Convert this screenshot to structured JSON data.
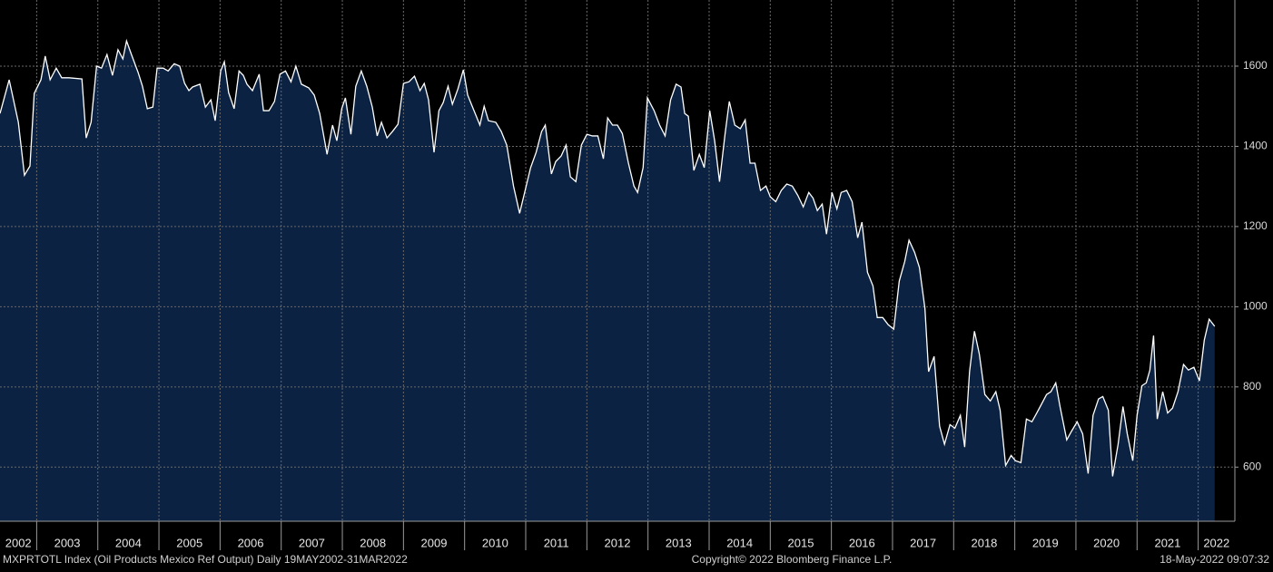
{
  "chart_data": {
    "type": "area",
    "source": "MXPRTOTL Index (Oil Products Mexico Ref Output)  Daily 19MAY2002-31MAR2022",
    "copyright": "Copyright© 2022 Bloomberg Finance L.P.",
    "timestamp": "18-May-2022 09:07:32",
    "xlim": [
      2002.4,
      2022.6
    ],
    "xticks": [
      2002,
      2003,
      2004,
      2005,
      2006,
      2007,
      2008,
      2009,
      2010,
      2011,
      2012,
      2013,
      2014,
      2015,
      2016,
      2017,
      2018,
      2019,
      2020,
      2021,
      2022
    ],
    "ylim": [
      465,
      1765
    ],
    "yticks": [
      600,
      800,
      1000,
      1200,
      1400,
      1600
    ],
    "grid": true,
    "x": [
      2002.4,
      2002.55,
      2002.7,
      2002.8,
      2002.89,
      2002.96,
      2003.07,
      2003.14,
      2003.22,
      2003.32,
      2003.41,
      2003.53,
      2003.74,
      2003.81,
      2003.89,
      2003.98,
      2004.06,
      2004.15,
      2004.24,
      2004.33,
      2004.41,
      2004.47,
      2004.55,
      2004.66,
      2004.73,
      2004.81,
      2004.9,
      2004.97,
      2005.07,
      2005.15,
      2005.25,
      2005.34,
      2005.42,
      2005.49,
      2005.55,
      2005.67,
      2005.76,
      2005.85,
      2005.92,
      2006.01,
      2006.07,
      2006.14,
      2006.23,
      2006.31,
      2006.38,
      2006.44,
      2006.53,
      2006.64,
      2006.71,
      2006.8,
      2006.89,
      2006.98,
      2007.07,
      2007.16,
      2007.24,
      2007.33,
      2007.45,
      2007.54,
      2007.63,
      2007.75,
      2007.84,
      2007.91,
      2007.99,
      2008.05,
      2008.14,
      2008.22,
      2008.31,
      2008.4,
      2008.49,
      2008.57,
      2008.64,
      2008.73,
      2008.82,
      2008.91,
      2009.0,
      2009.09,
      2009.18,
      2009.27,
      2009.34,
      2009.41,
      2009.5,
      2009.58,
      2009.65,
      2009.73,
      2009.8,
      2009.89,
      2009.98,
      2010.05,
      2010.13,
      2010.25,
      2010.32,
      2010.39,
      2010.51,
      2010.6,
      2010.69,
      2010.8,
      2010.9,
      2010.99,
      2011.08,
      2011.17,
      2011.26,
      2011.32,
      2011.42,
      2011.49,
      2011.58,
      2011.66,
      2011.73,
      2011.82,
      2011.91,
      2012.0,
      2012.09,
      2012.18,
      2012.27,
      2012.34,
      2012.42,
      2012.5,
      2012.58,
      2012.68,
      2012.77,
      2012.83,
      2012.92,
      2012.99,
      2013.1,
      2013.19,
      2013.28,
      2013.37,
      2013.46,
      2013.54,
      2013.6,
      2013.66,
      2013.75,
      2013.84,
      2013.92,
      2014.01,
      2014.09,
      2014.17,
      2014.26,
      2014.33,
      2014.42,
      2014.51,
      2014.59,
      2014.67,
      2014.75,
      2014.84,
      2014.93,
      2015.0,
      2015.09,
      2015.18,
      2015.27,
      2015.36,
      2015.45,
      2015.54,
      2015.63,
      2015.7,
      2015.77,
      2015.85,
      2015.92,
      2016.01,
      2016.09,
      2016.16,
      2016.25,
      2016.34,
      2016.43,
      2016.5,
      2016.59,
      2016.68,
      2016.75,
      2016.84,
      2016.93,
      2017.02,
      2017.11,
      2017.2,
      2017.27,
      2017.36,
      2017.44,
      2017.53,
      2017.59,
      2017.68,
      2017.77,
      2017.85,
      2017.94,
      2018.02,
      2018.11,
      2018.18,
      2018.26,
      2018.34,
      2018.42,
      2018.51,
      2018.6,
      2018.69,
      2018.76,
      2018.85,
      2018.94,
      2019.01,
      2019.1,
      2019.19,
      2019.28,
      2019.36,
      2019.44,
      2019.52,
      2019.59,
      2019.67,
      2019.74,
      2019.85,
      2019.93,
      2020.02,
      2020.11,
      2020.2,
      2020.28,
      2020.37,
      2020.44,
      2020.53,
      2020.6,
      2020.69,
      2020.77,
      2020.84,
      2020.93,
      2021.0,
      2021.08,
      2021.15,
      2021.21,
      2021.27,
      2021.33,
      2021.42,
      2021.5,
      2021.58,
      2021.67,
      2021.76,
      2021.84,
      2021.93,
      2022.02,
      2022.1,
      2022.18,
      2022.27
    ],
    "values": [
      1482,
      1566,
      1460,
      1328,
      1351,
      1532,
      1566,
      1625,
      1566,
      1595,
      1571,
      1571,
      1568,
      1421,
      1460,
      1600,
      1595,
      1629,
      1577,
      1641,
      1618,
      1663,
      1629,
      1584,
      1550,
      1494,
      1498,
      1595,
      1595,
      1588,
      1606,
      1600,
      1557,
      1539,
      1548,
      1555,
      1498,
      1516,
      1464,
      1588,
      1611,
      1534,
      1494,
      1588,
      1577,
      1555,
      1539,
      1580,
      1489,
      1489,
      1512,
      1580,
      1588,
      1561,
      1600,
      1555,
      1546,
      1528,
      1482,
      1380,
      1453,
      1414,
      1494,
      1521,
      1430,
      1550,
      1588,
      1550,
      1498,
      1426,
      1460,
      1421,
      1437,
      1455,
      1557,
      1561,
      1575,
      1539,
      1557,
      1516,
      1385,
      1489,
      1509,
      1550,
      1505,
      1543,
      1591,
      1528,
      1498,
      1453,
      1500,
      1464,
      1460,
      1437,
      1403,
      1301,
      1233,
      1290,
      1347,
      1385,
      1437,
      1453,
      1331,
      1362,
      1376,
      1403,
      1324,
      1312,
      1403,
      1430,
      1426,
      1426,
      1369,
      1471,
      1453,
      1453,
      1432,
      1358,
      1301,
      1285,
      1347,
      1521,
      1489,
      1453,
      1426,
      1516,
      1555,
      1548,
      1482,
      1475,
      1340,
      1380,
      1347,
      1489,
      1414,
      1312,
      1430,
      1512,
      1453,
      1444,
      1466,
      1358,
      1358,
      1290,
      1301,
      1274,
      1262,
      1290,
      1306,
      1301,
      1278,
      1249,
      1285,
      1271,
      1240,
      1256,
      1181,
      1285,
      1244,
      1285,
      1290,
      1262,
      1172,
      1211,
      1086,
      1052,
      973,
      973,
      955,
      944,
      1064,
      1113,
      1166,
      1136,
      1098,
      996,
      838,
      876,
      702,
      657,
      706,
      697,
      729,
      650,
      838,
      939,
      882,
      781,
      765,
      788,
      742,
      604,
      629,
      616,
      611,
      720,
      713,
      735,
      758,
      781,
      788,
      810,
      751,
      668,
      690,
      713,
      683,
      584,
      729,
      770,
      776,
      742,
      577,
      657,
      751,
      683,
      616,
      729,
      803,
      810,
      842,
      928,
      720,
      788,
      735,
      747,
      788,
      856,
      842,
      849,
      815,
      917,
      969,
      951
    ],
    "color": "#0b2242",
    "line_color": "#ffffff"
  }
}
